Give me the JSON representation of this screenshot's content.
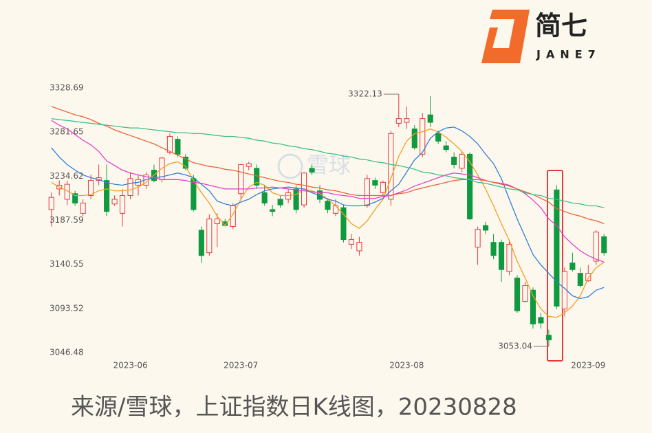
{
  "logo": {
    "name": "简七",
    "latin": "JANE7"
  },
  "watermark": "雪球",
  "caption": "来源/雪球，上证指数日K线图，20230828",
  "chart_data": {
    "type": "candlestick",
    "up_color": "#e8393a",
    "down_color": "#0f9a40",
    "ylim": [
      3046.48,
      3328.69
    ],
    "yticks": [
      3046.48,
      3093.52,
      3140.55,
      3187.59,
      3234.62,
      3281.65,
      3328.69
    ],
    "grid": false,
    "categories": [
      null,
      null,
      null,
      null,
      null,
      null,
      null,
      null,
      null,
      null,
      "2023-06",
      null,
      null,
      null,
      null,
      null,
      null,
      null,
      null,
      null,
      null,
      null,
      null,
      null,
      "2023-07",
      null,
      null,
      null,
      null,
      null,
      null,
      null,
      null,
      null,
      null,
      null,
      null,
      null,
      null,
      null,
      null,
      null,
      null,
      null,
      null,
      "2023-08",
      null,
      null,
      null,
      null,
      null,
      null,
      null,
      null,
      null,
      null,
      null,
      null,
      null,
      null,
      null,
      null,
      null,
      null,
      null,
      null,
      null,
      null,
      "2023-09",
      null,
      null
    ],
    "ohlc": [
      [
        3199,
        3217,
        3181,
        3212
      ],
      [
        3221,
        3230,
        3214,
        3225
      ],
      [
        3210,
        3230,
        3204,
        3226
      ],
      [
        3216,
        3219,
        3203,
        3206
      ],
      [
        3195,
        3210,
        3192,
        3206
      ],
      [
        3214,
        3236,
        3210,
        3230
      ],
      [
        3230,
        3247,
        3225,
        3233
      ],
      [
        3230,
        3247,
        3192,
        3197
      ],
      [
        3205,
        3214,
        3203,
        3210
      ],
      [
        3195,
        3221,
        3181,
        3214
      ],
      [
        3214,
        3239,
        3210,
        3232
      ],
      [
        3225,
        3236,
        3214,
        3231
      ],
      [
        3225,
        3239,
        3221,
        3236
      ],
      [
        3241,
        3247,
        3228,
        3230
      ],
      [
        3231,
        3255,
        3228,
        3254
      ],
      [
        3260,
        3280,
        3258,
        3277
      ],
      [
        3274,
        3277,
        3255,
        3258
      ],
      [
        3255,
        3258,
        3241,
        3243
      ],
      [
        3232,
        3236,
        3197,
        3199
      ],
      [
        3177,
        3181,
        3142,
        3150
      ],
      [
        3153,
        3194,
        3150,
        3189
      ],
      [
        3184,
        3195,
        3159,
        3189
      ],
      [
        3186,
        3189,
        3181,
        3182
      ],
      [
        3181,
        3206,
        3178,
        3203
      ],
      [
        3216,
        3248,
        3210,
        3247
      ],
      [
        3245,
        3250,
        3241,
        3248
      ],
      [
        3243,
        3247,
        3221,
        3225
      ],
      [
        3217,
        3225,
        3203,
        3206
      ],
      [
        3199,
        3204,
        3192,
        3197
      ],
      [
        3210,
        3214,
        3201,
        3204
      ],
      [
        3210,
        3221,
        3206,
        3217
      ],
      [
        3221,
        3225,
        3195,
        3199
      ],
      [
        3204,
        3239,
        3201,
        3238
      ],
      [
        3243,
        3247,
        3236,
        3239
      ],
      [
        3219,
        3225,
        3206,
        3210
      ],
      [
        3208,
        3211,
        3195,
        3199
      ],
      [
        3195,
        3210,
        3192,
        3203
      ],
      [
        3201,
        3204,
        3164,
        3167
      ],
      [
        3162,
        3173,
        3157,
        3167
      ],
      [
        3155,
        3170,
        3150,
        3164
      ],
      [
        3203,
        3236,
        3201,
        3232
      ],
      [
        3230,
        3233,
        3221,
        3225
      ],
      [
        3217,
        3230,
        3214,
        3228
      ],
      [
        3210,
        3283,
        3203,
        3280
      ],
      [
        3291,
        3322.13,
        3287,
        3296
      ],
      [
        3292,
        3309,
        3285,
        3296
      ],
      [
        3285,
        3289,
        3263,
        3265
      ],
      [
        3258,
        3302,
        3255,
        3296
      ],
      [
        3300,
        3320,
        3287,
        3292
      ],
      [
        3280,
        3283,
        3269,
        3272
      ],
      [
        3267,
        3272,
        3260,
        3263
      ],
      [
        3255,
        3260,
        3243,
        3247
      ],
      [
        3243,
        3261,
        3239,
        3258
      ],
      [
        3258,
        3260,
        3188,
        3189
      ],
      [
        3159,
        3181,
        3140,
        3178
      ],
      [
        3182,
        3186,
        3173,
        3177
      ],
      [
        3164,
        3173,
        3146,
        3150
      ],
      [
        3164,
        3167,
        3122,
        3135
      ],
      [
        3133,
        3166,
        3129,
        3162
      ],
      [
        3126,
        3129,
        3089,
        3091
      ],
      [
        3101,
        3122,
        3100,
        3118
      ],
      [
        3113,
        3116,
        3072,
        3077
      ],
      [
        3084,
        3089,
        3072,
        3078
      ],
      [
        3065,
        3071,
        3053.04,
        3060
      ],
      [
        3220,
        3225,
        3093,
        3096
      ],
      [
        3093,
        3137,
        3085,
        3133
      ],
      [
        3142,
        3153,
        3133,
        3135
      ],
      [
        3131,
        3137,
        3116,
        3118
      ],
      [
        3123,
        3140,
        3122,
        3131
      ],
      [
        3144,
        3177,
        3140,
        3175
      ],
      [
        3170,
        3173,
        3150,
        3153
      ]
    ],
    "series": [
      {
        "color": "#f0a020",
        "values": [
          3228,
          3223,
          3219,
          3214,
          3214,
          3215,
          3219,
          3221,
          3219,
          3219,
          3220,
          3223,
          3228,
          3236,
          3243,
          3248,
          3250,
          3245,
          3230,
          3217,
          3206,
          3192,
          3182,
          3194,
          3210,
          3223,
          3228,
          3225,
          3217,
          3214,
          3214,
          3215,
          3221,
          3219,
          3216,
          3210,
          3203,
          3194,
          3184,
          3179,
          3187,
          3199,
          3210,
          3232,
          3256,
          3272,
          3280,
          3282,
          3285,
          3282,
          3276,
          3269,
          3261,
          3250,
          3236,
          3221,
          3203,
          3184,
          3166,
          3144,
          3126,
          3107,
          3093,
          3085,
          3084,
          3089,
          3096,
          3107,
          3126,
          3137,
          3143
        ]
      },
      {
        "color": "#2f7fd6",
        "values": [
          3265,
          3255,
          3247,
          3241,
          3236,
          3233,
          3231,
          3228,
          3226,
          3225,
          3227,
          3228,
          3231,
          3233,
          3234,
          3236,
          3238,
          3236,
          3233,
          3226,
          3219,
          3208,
          3205,
          3203,
          3207,
          3210,
          3215,
          3219,
          3221,
          3222,
          3223,
          3222,
          3221,
          3217,
          3214,
          3210,
          3208,
          3204,
          3203,
          3203,
          3204,
          3207,
          3211,
          3219,
          3226,
          3239,
          3252,
          3260,
          3275,
          3282,
          3286,
          3287,
          3283,
          3277,
          3269,
          3258,
          3248,
          3232,
          3210,
          3189,
          3170,
          3151,
          3140,
          3131,
          3122,
          3115,
          3107,
          3104,
          3106,
          3113,
          3116
        ]
      },
      {
        "color": "#e040c8",
        "values": [
          3294,
          3289,
          3285,
          3279,
          3273,
          3268,
          3261,
          3251,
          3246,
          3241,
          3238,
          3236,
          3234,
          3233,
          3231,
          3231,
          3231,
          3230,
          3228,
          3227,
          3225,
          3223,
          3221,
          3221,
          3221,
          3221,
          3222,
          3222,
          3223,
          3222,
          3221,
          3220,
          3219,
          3218,
          3217,
          3217,
          3215,
          3214,
          3213,
          3211,
          3211,
          3211,
          3213,
          3214,
          3217,
          3220,
          3224,
          3227,
          3230,
          3233,
          3236,
          3238,
          3237,
          3236,
          3233,
          3230,
          3228,
          3227,
          3225,
          3221,
          3216,
          3209,
          3201,
          3189,
          3182,
          3170,
          3162,
          3155,
          3150,
          3146,
          3143
        ]
      },
      {
        "color": "#f06035",
        "values": [
          3309,
          3306,
          3303,
          3300,
          3298,
          3295,
          3291,
          3288,
          3284,
          3281,
          3278,
          3275,
          3272,
          3269,
          3265,
          3261,
          3257,
          3253,
          3249,
          3247,
          3245,
          3244,
          3242,
          3241,
          3239,
          3237,
          3235,
          3233,
          3231,
          3229,
          3228,
          3226,
          3225,
          3223,
          3222,
          3220,
          3219,
          3217,
          3215,
          3214,
          3214,
          3214,
          3214,
          3214,
          3216,
          3217,
          3220,
          3222,
          3224,
          3226,
          3228,
          3230,
          3231,
          3231,
          3231,
          3230,
          3228,
          3226,
          3224,
          3221,
          3218,
          3215,
          3211,
          3207,
          3200,
          3197,
          3194,
          3192,
          3189,
          3187,
          3184
        ]
      },
      {
        "color": "#3cc08a",
        "values": [
          3296,
          3295,
          3294,
          3293,
          3292,
          3291,
          3290,
          3289,
          3288,
          3287,
          3286,
          3286,
          3285,
          3284,
          3283,
          3282,
          3281,
          3281,
          3280,
          3280,
          3279,
          3278,
          3277,
          3277,
          3276,
          3275,
          3273,
          3272,
          3270,
          3269,
          3267,
          3266,
          3264,
          3263,
          3261,
          3259,
          3258,
          3256,
          3255,
          3253,
          3252,
          3250,
          3249,
          3247,
          3246,
          3244,
          3242,
          3239,
          3238,
          3236,
          3235,
          3233,
          3232,
          3231,
          3228,
          3227,
          3225,
          3223,
          3221,
          3220,
          3217,
          3215,
          3214,
          3211,
          3210,
          3208,
          3206,
          3205,
          3203,
          3203,
          3201
        ]
      }
    ],
    "annotations": [
      {
        "index": 44,
        "point": 1,
        "side": "left"
      },
      {
        "index": 63,
        "point": 2,
        "side": "left"
      }
    ]
  }
}
